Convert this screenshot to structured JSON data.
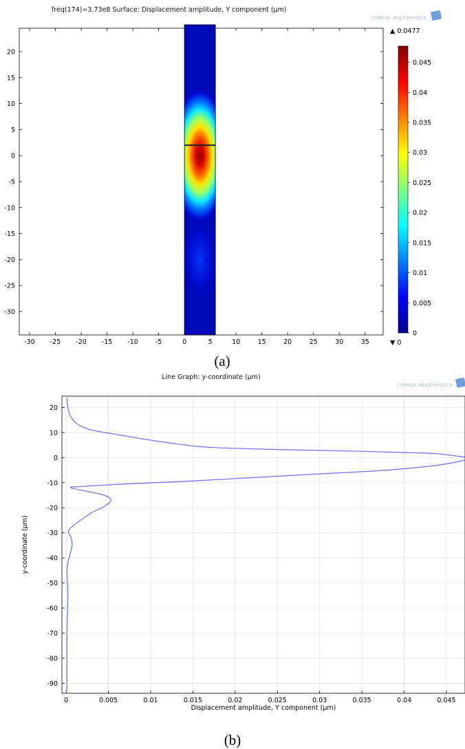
{
  "panel_a": {
    "title": "freq(174)=3.73e8   Surface: Displacement amplitude, Y component (µm)",
    "caption": "(a)",
    "logo": "COMSOL MULTIPHYSICS",
    "chart_data": {
      "type": "heatmap",
      "x_ticks": [
        -30,
        -25,
        -20,
        -15,
        -10,
        -5,
        0,
        5,
        10,
        15,
        20,
        25,
        30,
        35
      ],
      "y_ticks": [
        20,
        15,
        10,
        5,
        0,
        -5,
        -10,
        -15,
        -20,
        -25,
        -30
      ],
      "xlim": [
        -32,
        38.5
      ],
      "ylim": [
        -34.5,
        24.5
      ],
      "domain_x": [
        0,
        6
      ],
      "domain_y": [
        -34.5,
        24.5
      ],
      "interface_y": 2,
      "peak": {
        "x": 3,
        "y": 0
      },
      "colorbar": {
        "min": 0,
        "max": 0.0477,
        "max_label": "▲ 0.0477",
        "min_label": "▼ 0",
        "ticks": [
          0,
          0.005,
          0.01,
          0.015,
          0.02,
          0.025,
          0.03,
          0.035,
          0.04,
          0.045
        ]
      }
    }
  },
  "panel_b": {
    "title": "Line Graph: y-coordinate (µm)",
    "caption": "(b)",
    "logo": "COMSOL MULTIPHYSICS",
    "chart_data": {
      "type": "line",
      "xlabel": "Displacement amplitude, Y component (µm)",
      "ylabel": "y-coordinate (µm)",
      "xlim": [
        -0.0005,
        0.0472
      ],
      "ylim": [
        -94,
        24.5
      ],
      "x_ticks": [
        0,
        0.005,
        0.01,
        0.015,
        0.02,
        0.025,
        0.03,
        0.035,
        0.04,
        0.045
      ],
      "y_ticks": [
        20,
        10,
        0,
        -10,
        -20,
        -30,
        -40,
        -50,
        -60,
        -70,
        -80,
        -90
      ],
      "grid": true,
      "series": [
        {
          "color": "#6b6bef",
          "x": [
            0.0001,
            0.0002,
            0.0006,
            0.0015,
            0.003,
            0.0055,
            0.009,
            0.013,
            0.0175,
            0.028,
            0.035,
            0.0405,
            0.044,
            0.0465,
            0.0477,
            0.0472,
            0.044,
            0.038,
            0.03,
            0.022,
            0.014,
            0.007,
            0.002,
            0.0005,
            0.0025,
            0.0045,
            0.0053,
            0.0045,
            0.003,
            0.0015,
            0.0003,
            0.0006,
            0.0007,
            0.0005,
            0.0002,
            0.0001,
            0.0002,
            0.0001,
            0.0001,
            0.0001
          ],
          "y": [
            24,
            20,
            16,
            13,
            11,
            9.5,
            7.5,
            5.5,
            4,
            3,
            2.5,
            2,
            1.5,
            0.5,
            0,
            -1,
            -3,
            -5,
            -6.5,
            -8,
            -9.5,
            -10.5,
            -11.5,
            -12,
            -13.5,
            -15,
            -17,
            -19.5,
            -22,
            -25.5,
            -29,
            -32,
            -35,
            -38,
            -42,
            -46,
            -55,
            -70,
            -85,
            -93
          ]
        }
      ]
    }
  },
  "colors": {
    "line": "#6b6bef",
    "grid": "#e4e4e4",
    "background": "#ffffff"
  }
}
